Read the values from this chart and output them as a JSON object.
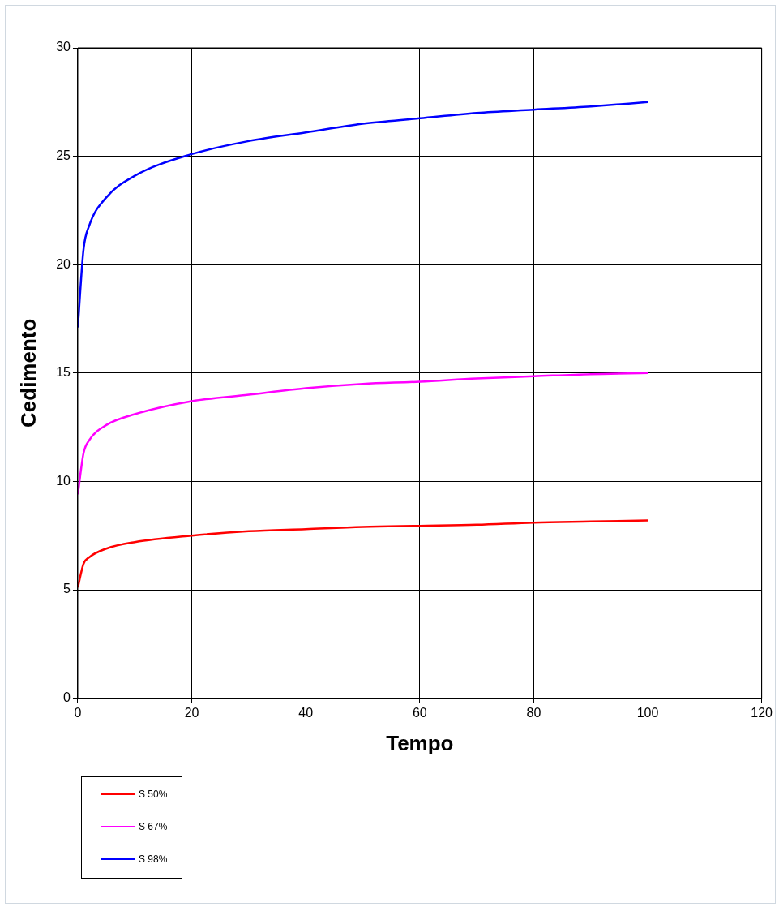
{
  "chart_data": {
    "type": "line",
    "xlabel": "Tempo",
    "ylabel": "Cedimento",
    "xlim": [
      0,
      120
    ],
    "xticks": [
      0,
      20,
      40,
      60,
      80,
      100,
      120
    ],
    "ylim": [
      0,
      30
    ],
    "yticks": [
      0,
      5,
      10,
      15,
      20,
      25,
      30
    ],
    "grid": true,
    "legend": "bottom left",
    "marker": "none",
    "line_style": "solid",
    "x": [
      0,
      1,
      2,
      5,
      10,
      20,
      30,
      40,
      50,
      60,
      70,
      80,
      90,
      100
    ],
    "series": [
      {
        "name": "S 50%",
        "color": "#ff0000",
        "values": [
          5.1,
          6.2,
          6.5,
          6.9,
          7.2,
          7.5,
          7.7,
          7.8,
          7.9,
          7.95,
          8.0,
          8.1,
          8.15,
          8.2
        ]
      },
      {
        "name": "S 67%",
        "color": "#ff00ff",
        "values": [
          9.4,
          11.3,
          11.9,
          12.6,
          13.1,
          13.7,
          14.0,
          14.3,
          14.5,
          14.6,
          14.75,
          14.85,
          14.95,
          15.0
        ]
      },
      {
        "name": "S 98%",
        "color": "#0000ff",
        "values": [
          17.1,
          20.7,
          21.8,
          23.1,
          24.1,
          25.1,
          25.7,
          26.1,
          26.5,
          26.75,
          27.0,
          27.15,
          27.3,
          27.5
        ]
      }
    ]
  }
}
